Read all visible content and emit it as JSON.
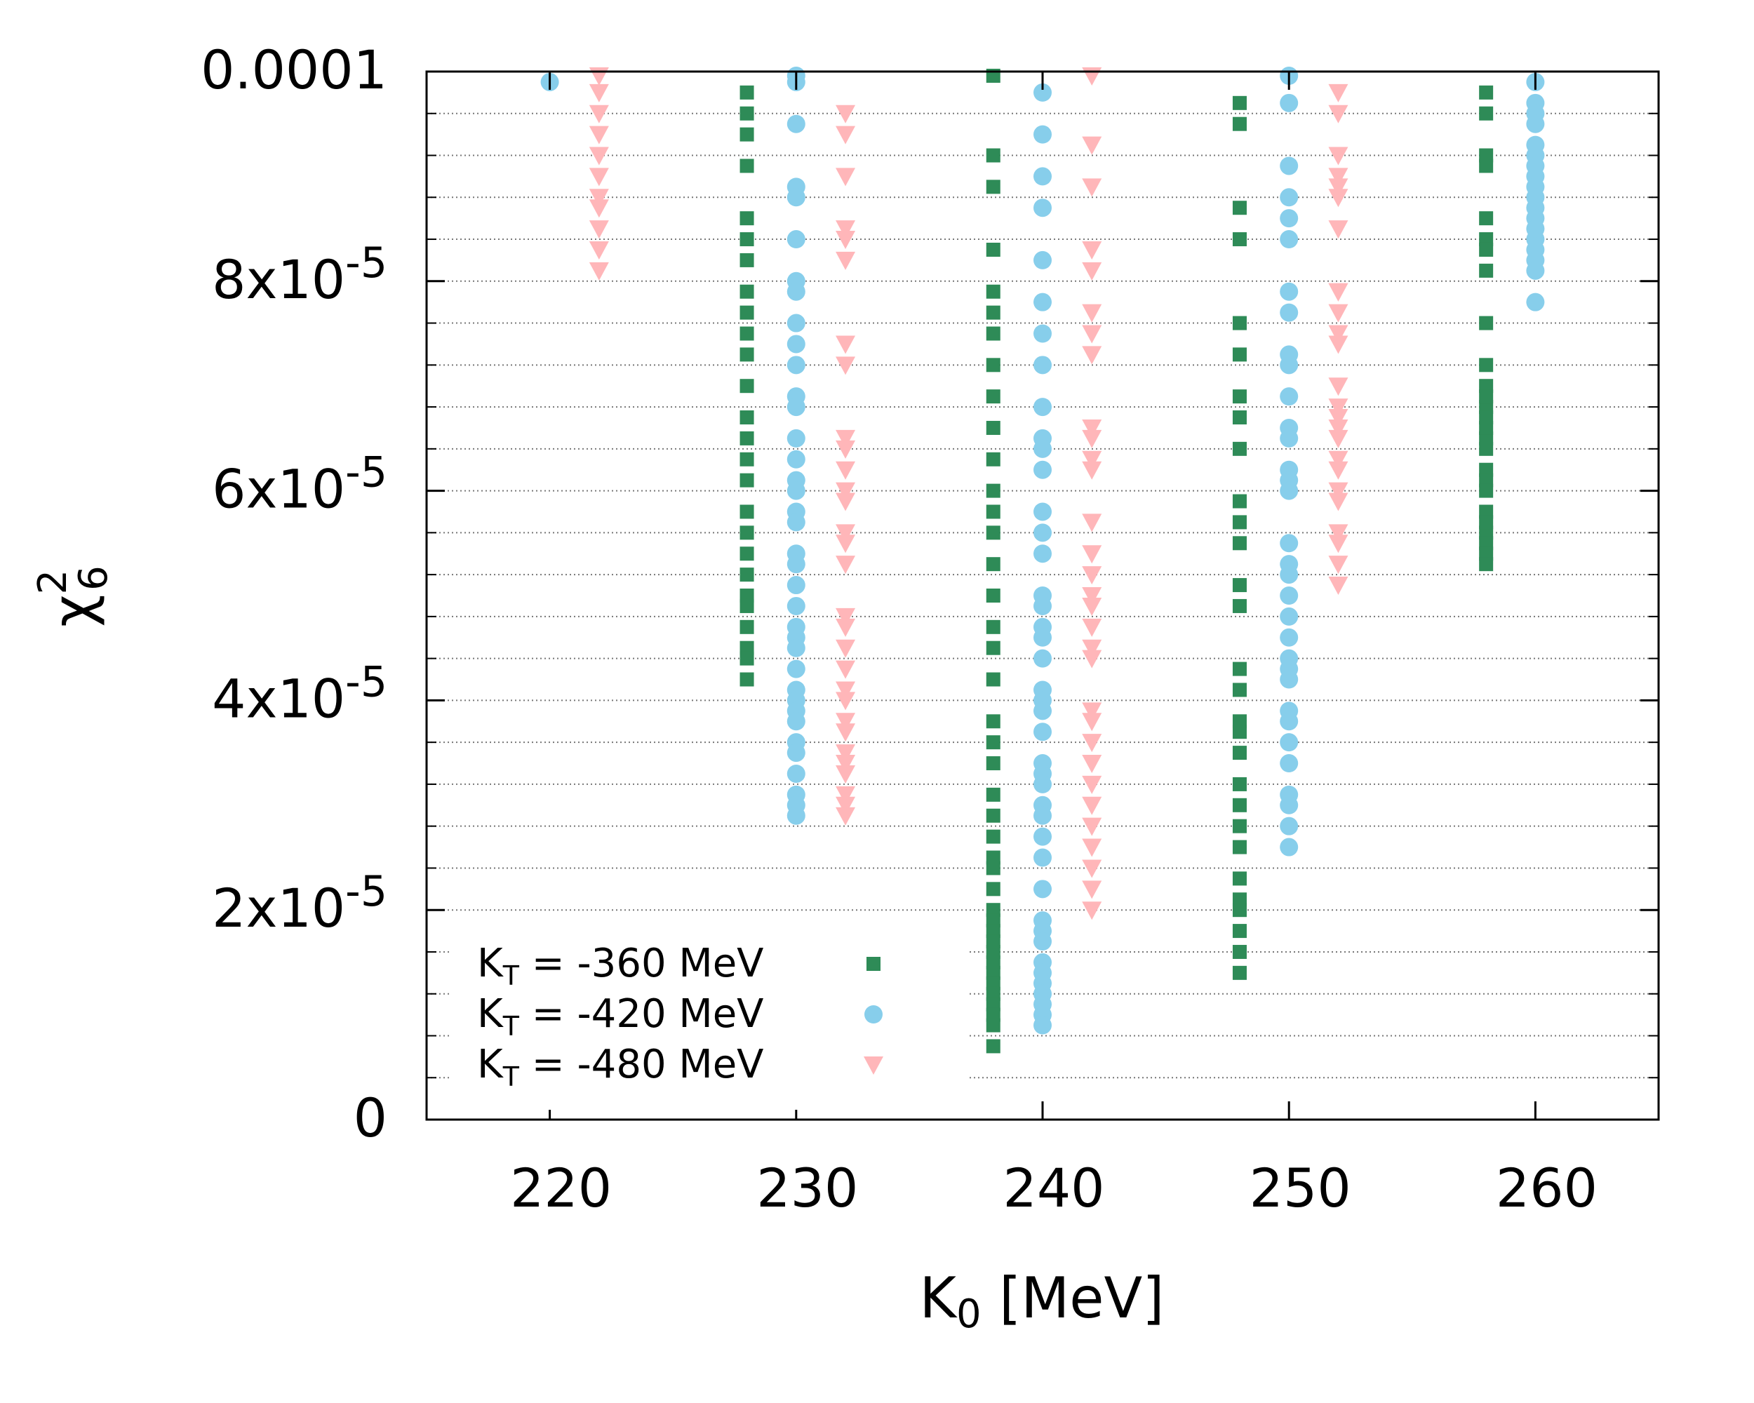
{
  "chart_data": {
    "type": "scatter",
    "title": "",
    "xlabel": "K",
    "xlabel_sub": "0",
    "xlabel_unit": " [MeV]",
    "ylabel": "χ",
    "ylabel_sup": "2",
    "ylabel_sub": "6",
    "xlim": [
      215,
      265
    ],
    "ylim": [
      0,
      0.0001
    ],
    "grid": true,
    "x_ticks": [
      {
        "value": 220,
        "label": "220"
      },
      {
        "value": 230,
        "label": "230"
      },
      {
        "value": 240,
        "label": "240"
      },
      {
        "value": 250,
        "label": "250"
      },
      {
        "value": 260,
        "label": "260"
      }
    ],
    "y_ticks": [
      {
        "value": 0,
        "mant": "0",
        "exp": ""
      },
      {
        "value": 2e-05,
        "mant": "2x10",
        "exp": "-5"
      },
      {
        "value": 4e-05,
        "mant": "4x10",
        "exp": "-5"
      },
      {
        "value": 6e-05,
        "mant": "6x10",
        "exp": "-5"
      },
      {
        "value": 8e-05,
        "mant": "8x10",
        "exp": "-5"
      },
      {
        "value": 0.0001,
        "mant": "0.0001",
        "exp": ""
      }
    ],
    "legend_position": "bottom-left",
    "series": [
      {
        "name": "KT = -360 MeV",
        "label_prefix": "K",
        "label_sub": "T",
        "label_rest": " = -360 MeV",
        "marker": "square",
        "color": "#2e8b57",
        "x": [
          228,
          228,
          228,
          228,
          228,
          228,
          228,
          228,
          228,
          228,
          228,
          228,
          228,
          228,
          228,
          228,
          228,
          228,
          228,
          228,
          228,
          228,
          228,
          228,
          228,
          228,
          238,
          238,
          238,
          238,
          238,
          238,
          238,
          238,
          238,
          238,
          238,
          238,
          238,
          238,
          238,
          238,
          238,
          238,
          238,
          238,
          238,
          238,
          238,
          238,
          238,
          238,
          238,
          238,
          238,
          238,
          238,
          238,
          238,
          238,
          238,
          238,
          238,
          238,
          238,
          238,
          238,
          248,
          248,
          248,
          248,
          248,
          248,
          248,
          248,
          248,
          248,
          248,
          248,
          248,
          248,
          248,
          248,
          248,
          248,
          248,
          248,
          248,
          248,
          248,
          248,
          248,
          248,
          248,
          248,
          248,
          258,
          258,
          258,
          258,
          258,
          258,
          258,
          258,
          258,
          258,
          258,
          258,
          258,
          258,
          258,
          258,
          258,
          258,
          258,
          258,
          258,
          258,
          258,
          258,
          258,
          258
        ],
        "y": [
          9.8e-05,
          9.6e-05,
          9.4e-05,
          9.1e-05,
          8.6e-05,
          8.4e-05,
          8.2e-05,
          7.9e-05,
          7.7e-05,
          7.5e-05,
          7.3e-05,
          7e-05,
          6.7e-05,
          6.5e-05,
          6.3e-05,
          6.1e-05,
          5.8e-05,
          5.6e-05,
          5.4e-05,
          5.2e-05,
          5e-05,
          4.9e-05,
          4.7e-05,
          4.5e-05,
          4.4e-05,
          4.2e-05,
          0.0001,
          9.2e-05,
          8.9e-05,
          8.3e-05,
          7.9e-05,
          7.7e-05,
          7.5e-05,
          7.2e-05,
          6.9e-05,
          6.6e-05,
          6.3e-05,
          6e-05,
          5.8e-05,
          5.6e-05,
          5.3e-05,
          5e-05,
          4.7e-05,
          4.5e-05,
          4.2e-05,
          3.8e-05,
          3.6e-05,
          3.4e-05,
          3.1e-05,
          2.9e-05,
          2.7e-05,
          2.5e-05,
          2.4e-05,
          2.2e-05,
          2e-05,
          1.9e-05,
          1.8e-05,
          1.7e-05,
          1.6e-05,
          1.5e-05,
          1.4e-05,
          1.3e-05,
          1.2e-05,
          1.1e-05,
          1e-05,
          9e-06,
          7e-06,
          9.7e-05,
          9.5e-05,
          8.7e-05,
          8.4e-05,
          7.6e-05,
          7.3e-05,
          6.9e-05,
          6.7e-05,
          6.4e-05,
          5.9e-05,
          5.7e-05,
          5.5e-05,
          5.1e-05,
          4.9e-05,
          4.3e-05,
          4.1e-05,
          3.8e-05,
          3.7e-05,
          3.5e-05,
          3.2e-05,
          3e-05,
          2.8e-05,
          2.6e-05,
          2.3e-05,
          2.1e-05,
          2e-05,
          1.8e-05,
          1.6e-05,
          1.4e-05,
          9.8e-05,
          9.6e-05,
          9.2e-05,
          9.1e-05,
          8.6e-05,
          8.4e-05,
          8.1e-05,
          7.6e-05,
          7.2e-05,
          7e-05,
          6.8e-05,
          6.7e-05,
          6.5e-05,
          6.4e-05,
          6.2e-05,
          6.1e-05,
          6e-05,
          5.8e-05,
          5.6e-05,
          5.5e-05,
          5.4e-05,
          5.3e-05,
          8.3e-05,
          6.9e-05,
          6.6e-05,
          5.7e-05
        ]
      },
      {
        "name": "KT = -420 MeV",
        "label_prefix": "K",
        "label_sub": "T",
        "label_rest": " = -420 MeV",
        "marker": "circle",
        "color": "#87ceeb",
        "x": [
          220,
          230,
          230,
          230,
          230,
          230,
          230,
          230,
          230,
          230,
          230,
          230,
          230,
          230,
          230,
          230,
          230,
          230,
          230,
          230,
          230,
          230,
          230,
          230,
          230,
          230,
          230,
          230,
          230,
          230,
          230,
          230,
          230,
          230,
          230,
          230,
          230,
          230,
          240,
          240,
          240,
          240,
          240,
          240,
          240,
          240,
          240,
          240,
          240,
          240,
          240,
          240,
          240,
          240,
          240,
          240,
          240,
          240,
          240,
          240,
          240,
          240,
          240,
          240,
          240,
          240,
          240,
          240,
          240,
          240,
          240,
          240,
          240,
          240,
          240,
          240,
          240,
          240,
          240,
          240,
          250,
          250,
          250,
          250,
          250,
          250,
          250,
          250,
          250,
          250,
          250,
          250,
          250,
          250,
          250,
          250,
          250,
          250,
          250,
          250,
          250,
          250,
          250,
          250,
          250,
          250,
          250,
          250,
          250,
          250,
          250,
          250,
          250,
          260,
          260,
          260,
          260,
          260,
          260,
          260,
          260,
          260,
          260,
          260,
          260,
          260,
          260,
          260,
          260,
          260,
          260
        ],
        "y": [
          9.9e-05,
          0.0001,
          9.9e-05,
          9.5e-05,
          8.9e-05,
          8.8e-05,
          8.4e-05,
          8e-05,
          7.9e-05,
          7.6e-05,
          7.4e-05,
          7.2e-05,
          6.9e-05,
          6.8e-05,
          6.5e-05,
          6.3e-05,
          6.1e-05,
          6e-05,
          5.8e-05,
          5.7e-05,
          5.4e-05,
          5.3e-05,
          5.1e-05,
          4.9e-05,
          4.7e-05,
          4.6e-05,
          4.5e-05,
          4.3e-05,
          4.1e-05,
          4e-05,
          3.9e-05,
          3.8e-05,
          3.6e-05,
          3.5e-05,
          3.3e-05,
          3.1e-05,
          3e-05,
          2.9e-05,
          9.8e-05,
          9.4e-05,
          9e-05,
          8.7e-05,
          8.2e-05,
          7.8e-05,
          7.5e-05,
          7.2e-05,
          6.8e-05,
          6.5e-05,
          6.4e-05,
          6.2e-05,
          5.8e-05,
          5.6e-05,
          5.4e-05,
          5e-05,
          4.9e-05,
          4.7e-05,
          4.6e-05,
          4.4e-05,
          4.1e-05,
          4e-05,
          3.9e-05,
          3.7e-05,
          3.4e-05,
          3.3e-05,
          3.2e-05,
          3e-05,
          2.9e-05,
          2.7e-05,
          2.5e-05,
          2.2e-05,
          1.9e-05,
          1.8e-05,
          1.7e-05,
          1.5e-05,
          1.4e-05,
          1.3e-05,
          1.2e-05,
          1.1e-05,
          1e-05,
          9e-06,
          0.0001,
          9.7e-05,
          9.1e-05,
          8.8e-05,
          8.6e-05,
          8.4e-05,
          7.9e-05,
          7.7e-05,
          7.3e-05,
          7.2e-05,
          6.9e-05,
          6.6e-05,
          6.5e-05,
          6.2e-05,
          6.1e-05,
          6e-05,
          5.5e-05,
          5.3e-05,
          5.2e-05,
          5e-05,
          4.8e-05,
          4.6e-05,
          4.4e-05,
          4.3e-05,
          4.2e-05,
          3.9e-05,
          3.8e-05,
          3.6e-05,
          3.4e-05,
          3.1e-05,
          3e-05,
          2.8e-05,
          2.6e-05,
          9.9e-05,
          9.7e-05,
          9.6e-05,
          9.5e-05,
          9.3e-05,
          9.2e-05,
          9.1e-05,
          9e-05,
          8.9e-05,
          8.7e-05,
          8.6e-05,
          8.4e-05,
          8.3e-05,
          8.2e-05,
          8.1e-05,
          7.8e-05,
          8.8e-05,
          8.5e-05
        ]
      },
      {
        "name": "KT = -480 MeV",
        "label_prefix": "K",
        "label_sub": "T",
        "label_rest": " = -480 MeV",
        "marker": "triangle-down",
        "color": "#ffb6b9",
        "x": [
          222,
          222,
          222,
          222,
          222,
          222,
          222,
          222,
          222,
          222,
          222,
          232,
          232,
          232,
          232,
          232,
          232,
          232,
          232,
          232,
          232,
          232,
          232,
          232,
          232,
          232,
          232,
          232,
          232,
          232,
          232,
          232,
          232,
          232,
          232,
          232,
          232,
          232,
          232,
          232,
          232,
          242,
          242,
          242,
          242,
          242,
          242,
          242,
          242,
          242,
          242,
          242,
          242,
          242,
          242,
          242,
          242,
          242,
          242,
          242,
          242,
          242,
          242,
          242,
          242,
          242,
          242,
          242,
          242,
          242,
          242,
          242,
          252,
          252,
          252,
          252,
          252,
          252,
          252,
          252,
          252,
          252,
          252,
          252,
          252,
          252,
          252,
          252,
          252,
          252,
          252,
          252,
          252,
          252,
          252,
          252,
          252
        ],
        "y": [
          0.0001,
          9.8e-05,
          9.6e-05,
          9.4e-05,
          9.2e-05,
          9e-05,
          8.8e-05,
          8.7e-05,
          8.5e-05,
          8.3e-05,
          8.1e-05,
          9.6e-05,
          9.4e-05,
          9e-05,
          8.5e-05,
          8.4e-05,
          8.2e-05,
          7.4e-05,
          7.2e-05,
          6.5e-05,
          6.4e-05,
          6.2e-05,
          6e-05,
          5.9e-05,
          5.6e-05,
          5.5e-05,
          5.3e-05,
          4.8e-05,
          4.7e-05,
          4.5e-05,
          4.3e-05,
          4.1e-05,
          4e-05,
          3.8e-05,
          3.7e-05,
          3.5e-05,
          3.4e-05,
          3.3e-05,
          3.1e-05,
          3e-05,
          2.9e-05,
          0.0001,
          9.3e-05,
          8.9e-05,
          8.3e-05,
          8.1e-05,
          7.7e-05,
          7.5e-05,
          7.3e-05,
          6.6e-05,
          6.5e-05,
          6.3e-05,
          6.2e-05,
          5.7e-05,
          5.4e-05,
          5.2e-05,
          5e-05,
          4.9e-05,
          4.7e-05,
          4.5e-05,
          4.4e-05,
          3.9e-05,
          3.8e-05,
          3.6e-05,
          3.4e-05,
          3.2e-05,
          3e-05,
          2.8e-05,
          2.6e-05,
          2.4e-05,
          2.2e-05,
          2e-05,
          9.8e-05,
          9.6e-05,
          9.2e-05,
          9e-05,
          8.9e-05,
          8.5e-05,
          7.9e-05,
          7.7e-05,
          7.5e-05,
          7.4e-05,
          7e-05,
          6.8e-05,
          6.5e-05,
          6.3e-05,
          6.2e-05,
          6e-05,
          5.9e-05,
          5.6e-05,
          5.5e-05,
          5.3e-05,
          5.1e-05,
          8.8e-05,
          7.9e-05,
          6.7e-05,
          6.6e-05
        ]
      }
    ]
  },
  "colors": {
    "axis": "#000000",
    "grid": "#777777",
    "background": "#ffffff"
  }
}
